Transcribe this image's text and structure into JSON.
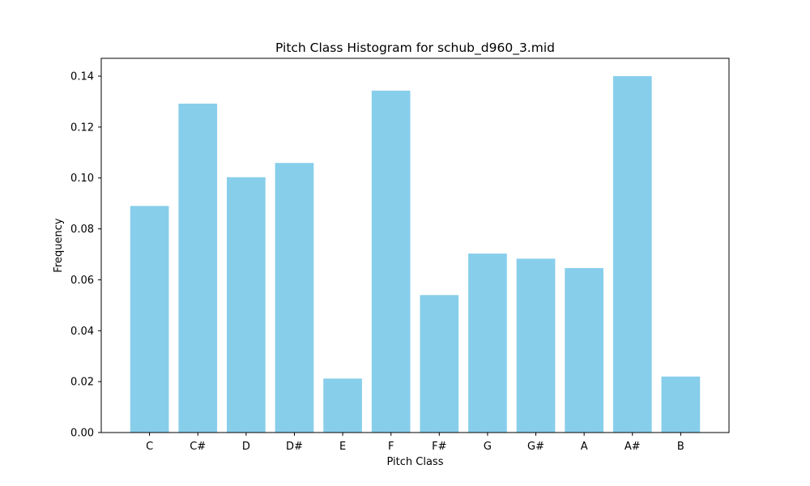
{
  "chart_data": {
    "type": "bar",
    "title": "Pitch Class Histogram for schub_d960_3.mid",
    "xlabel": "Pitch Class",
    "ylabel": "Frequency",
    "categories": [
      "C",
      "C#",
      "D",
      "D#",
      "E",
      "F",
      "F#",
      "G",
      "G#",
      "A",
      "A#",
      "B"
    ],
    "values": [
      0.089,
      0.1292,
      0.1003,
      0.1059,
      0.0212,
      0.1343,
      0.054,
      0.0703,
      0.0683,
      0.0646,
      0.14,
      0.022
    ],
    "ylim": [
      0,
      0.147
    ],
    "yticks": [
      "0.00",
      "0.02",
      "0.04",
      "0.06",
      "0.08",
      "0.10",
      "0.12",
      "0.14"
    ],
    "bar_color": "#87ceeb",
    "grid": false,
    "legend": "none"
  }
}
